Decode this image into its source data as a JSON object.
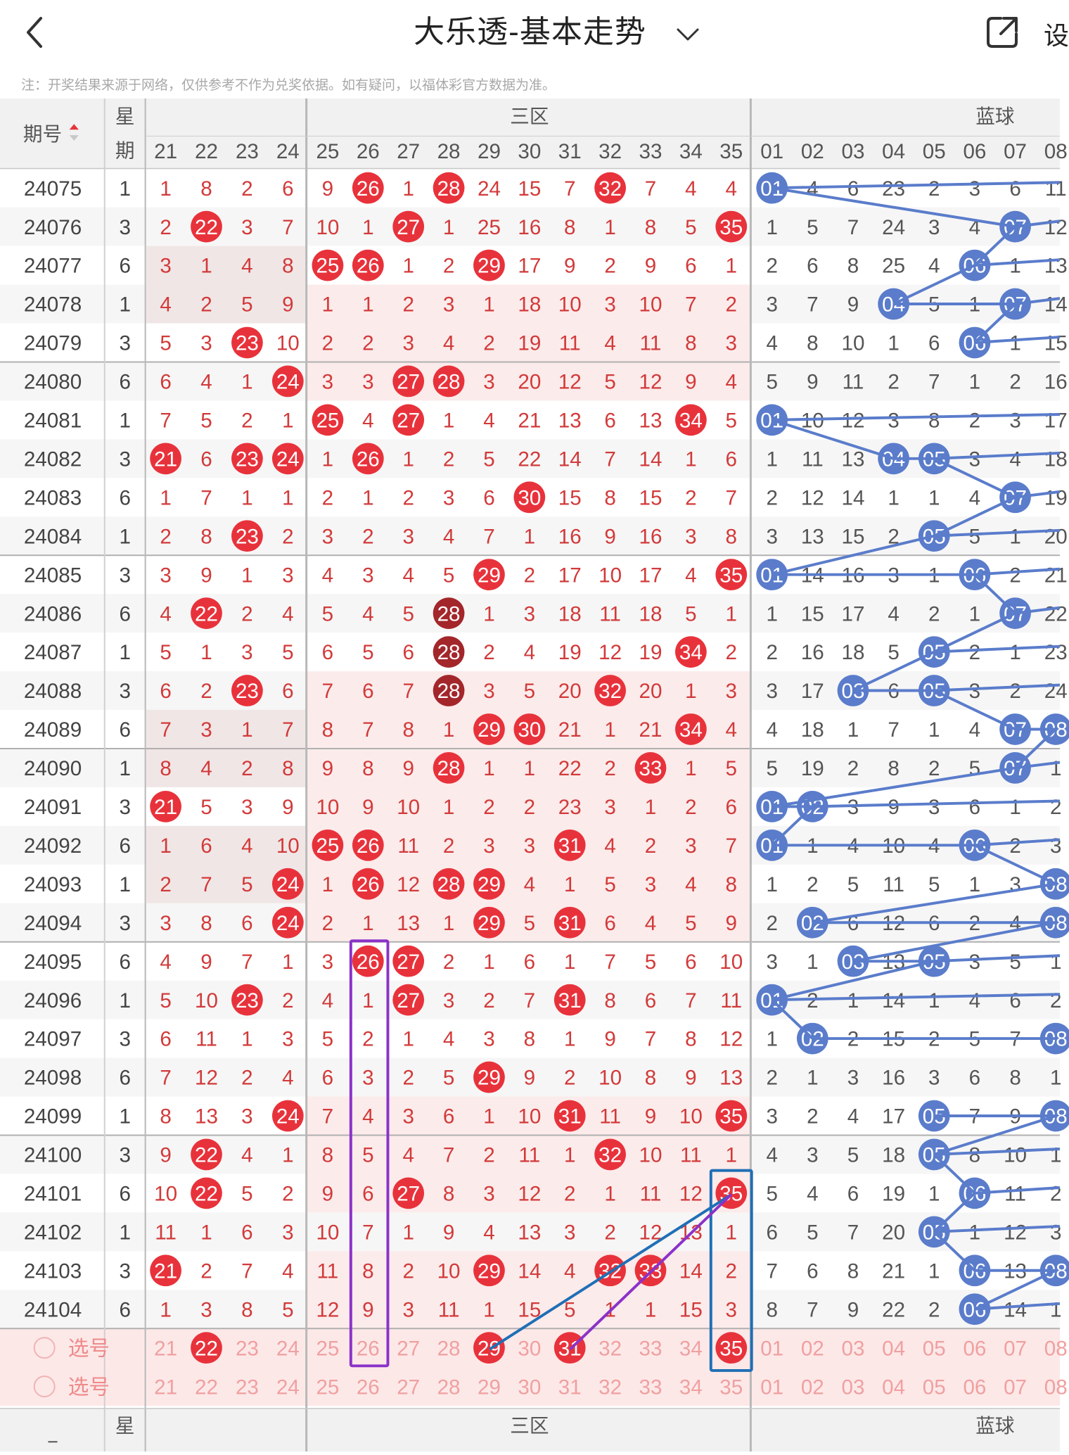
{
  "header": {
    "title": "大乐透-基本走势",
    "settings_label": "设"
  },
  "note": "注：开奖结果来源于网络，仅供参考不作为兑奖依据。如有疑问，以福体彩官方数据为准。",
  "table": {
    "issue_header": "期号",
    "weekday_header": "星期",
    "zone3_header": "三区",
    "blue_header": "蓝球",
    "front_cols": [
      "21",
      "22",
      "23",
      "24",
      "25",
      "26",
      "27",
      "28",
      "29",
      "30",
      "31",
      "32",
      "33",
      "34",
      "35"
    ],
    "blue_cols": [
      "01",
      "02",
      "03",
      "04",
      "05",
      "06",
      "07",
      "08"
    ],
    "select_label": "选号",
    "rows": [
      {
        "issue": "24075",
        "w": "1",
        "front": [
          "1",
          "8",
          "2",
          "6",
          "9",
          "26",
          "1",
          "28",
          "24",
          "15",
          "7",
          "32",
          "7",
          "4",
          "4"
        ],
        "blue": [
          "01",
          "4",
          "6",
          "23",
          "2",
          "3",
          "6",
          "11"
        ]
      },
      {
        "issue": "24076",
        "w": "3",
        "front": [
          "2",
          "22",
          "3",
          "7",
          "10",
          "1",
          "27",
          "1",
          "25",
          "16",
          "8",
          "1",
          "8",
          "5",
          "35"
        ],
        "blue": [
          "1",
          "5",
          "7",
          "24",
          "3",
          "4",
          "07",
          "12"
        ]
      },
      {
        "issue": "24077",
        "w": "6",
        "front": [
          "3",
          "1",
          "4",
          "8",
          "25",
          "26",
          "1",
          "2",
          "29",
          "17",
          "9",
          "2",
          "9",
          "6",
          "1"
        ],
        "blue": [
          "2",
          "6",
          "8",
          "25",
          "4",
          "06",
          "1",
          "13"
        ]
      },
      {
        "issue": "24078",
        "w": "1",
        "front": [
          "4",
          "2",
          "5",
          "9",
          "1",
          "1",
          "2",
          "3",
          "1",
          "18",
          "10",
          "3",
          "10",
          "7",
          "2"
        ],
        "blue": [
          "3",
          "7",
          "9",
          "04",
          "5",
          "1",
          "07",
          "14"
        ]
      },
      {
        "issue": "24079",
        "w": "3",
        "front": [
          "5",
          "3",
          "23",
          "10",
          "2",
          "2",
          "3",
          "4",
          "2",
          "19",
          "11",
          "4",
          "11",
          "8",
          "3"
        ],
        "blue": [
          "4",
          "8",
          "10",
          "1",
          "6",
          "06",
          "1",
          "15"
        ]
      },
      {
        "issue": "24080",
        "w": "6",
        "front": [
          "6",
          "4",
          "1",
          "24",
          "3",
          "3",
          "27",
          "28",
          "3",
          "20",
          "12",
          "5",
          "12",
          "9",
          "4"
        ],
        "blue": [
          "5",
          "9",
          "11",
          "2",
          "7",
          "1",
          "2",
          "16"
        ]
      },
      {
        "issue": "24081",
        "w": "1",
        "front": [
          "7",
          "5",
          "2",
          "1",
          "25",
          "4",
          "27",
          "1",
          "4",
          "21",
          "13",
          "6",
          "13",
          "34",
          "5"
        ],
        "blue": [
          "01",
          "10",
          "12",
          "3",
          "8",
          "2",
          "3",
          "17"
        ]
      },
      {
        "issue": "24082",
        "w": "3",
        "front": [
          "21",
          "6",
          "23",
          "24",
          "1",
          "26",
          "1",
          "2",
          "5",
          "22",
          "14",
          "7",
          "14",
          "1",
          "6"
        ],
        "blue": [
          "1",
          "11",
          "13",
          "04",
          "05",
          "3",
          "4",
          "18"
        ]
      },
      {
        "issue": "24083",
        "w": "6",
        "front": [
          "1",
          "7",
          "1",
          "1",
          "2",
          "1",
          "2",
          "3",
          "6",
          "30",
          "15",
          "8",
          "15",
          "2",
          "7"
        ],
        "blue": [
          "2",
          "12",
          "14",
          "1",
          "1",
          "4",
          "07",
          "19"
        ]
      },
      {
        "issue": "24084",
        "w": "1",
        "front": [
          "2",
          "8",
          "23",
          "2",
          "3",
          "2",
          "3",
          "4",
          "7",
          "1",
          "16",
          "9",
          "16",
          "3",
          "8"
        ],
        "blue": [
          "3",
          "13",
          "15",
          "2",
          "05",
          "5",
          "1",
          "20"
        ]
      },
      {
        "issue": "24085",
        "w": "3",
        "front": [
          "3",
          "9",
          "1",
          "3",
          "4",
          "3",
          "4",
          "5",
          "29",
          "2",
          "17",
          "10",
          "17",
          "4",
          "35"
        ],
        "blue": [
          "01",
          "14",
          "16",
          "3",
          "1",
          "06",
          "2",
          "21"
        ]
      },
      {
        "issue": "24086",
        "w": "6",
        "front": [
          "4",
          "22",
          "2",
          "4",
          "5",
          "4",
          "5",
          "28",
          "1",
          "3",
          "18",
          "11",
          "18",
          "5",
          "1"
        ],
        "blue": [
          "1",
          "15",
          "17",
          "4",
          "2",
          "1",
          "07",
          "22"
        ]
      },
      {
        "issue": "24087",
        "w": "1",
        "front": [
          "5",
          "1",
          "3",
          "5",
          "6",
          "5",
          "6",
          "28",
          "2",
          "4",
          "19",
          "12",
          "19",
          "34",
          "2"
        ],
        "blue": [
          "2",
          "16",
          "18",
          "5",
          "05",
          "2",
          "1",
          "23"
        ]
      },
      {
        "issue": "24088",
        "w": "3",
        "front": [
          "6",
          "2",
          "23",
          "6",
          "7",
          "6",
          "7",
          "28",
          "3",
          "5",
          "20",
          "32",
          "20",
          "1",
          "3"
        ],
        "blue": [
          "3",
          "17",
          "03",
          "6",
          "05",
          "3",
          "2",
          "24"
        ]
      },
      {
        "issue": "24089",
        "w": "6",
        "front": [
          "7",
          "3",
          "1",
          "7",
          "8",
          "7",
          "8",
          "1",
          "29",
          "30",
          "21",
          "1",
          "21",
          "34",
          "4"
        ],
        "blue": [
          "4",
          "18",
          "1",
          "7",
          "1",
          "4",
          "07",
          "08"
        ]
      },
      {
        "issue": "24090",
        "w": "1",
        "front": [
          "8",
          "4",
          "2",
          "8",
          "9",
          "8",
          "9",
          "28",
          "1",
          "1",
          "22",
          "2",
          "33",
          "1",
          "5"
        ],
        "blue": [
          "5",
          "19",
          "2",
          "8",
          "2",
          "5",
          "07",
          "1"
        ]
      },
      {
        "issue": "24091",
        "w": "3",
        "front": [
          "21",
          "5",
          "3",
          "9",
          "10",
          "9",
          "10",
          "1",
          "2",
          "2",
          "23",
          "3",
          "1",
          "2",
          "6"
        ],
        "blue": [
          "01",
          "02",
          "3",
          "9",
          "3",
          "6",
          "1",
          "2"
        ]
      },
      {
        "issue": "24092",
        "w": "6",
        "front": [
          "1",
          "6",
          "4",
          "10",
          "25",
          "26",
          "11",
          "2",
          "3",
          "3",
          "31",
          "4",
          "2",
          "3",
          "7"
        ],
        "blue": [
          "01",
          "1",
          "4",
          "10",
          "4",
          "06",
          "2",
          "3"
        ]
      },
      {
        "issue": "24093",
        "w": "1",
        "front": [
          "2",
          "7",
          "5",
          "24",
          "1",
          "26",
          "12",
          "28",
          "29",
          "4",
          "1",
          "5",
          "3",
          "4",
          "8"
        ],
        "blue": [
          "1",
          "2",
          "5",
          "11",
          "5",
          "1",
          "3",
          "08"
        ]
      },
      {
        "issue": "24094",
        "w": "3",
        "front": [
          "3",
          "8",
          "6",
          "24",
          "2",
          "1",
          "13",
          "1",
          "29",
          "5",
          "31",
          "6",
          "4",
          "5",
          "9"
        ],
        "blue": [
          "2",
          "02",
          "6",
          "12",
          "6",
          "2",
          "4",
          "08"
        ]
      },
      {
        "issue": "24095",
        "w": "6",
        "front": [
          "4",
          "9",
          "7",
          "1",
          "3",
          "26",
          "27",
          "2",
          "1",
          "6",
          "1",
          "7",
          "5",
          "6",
          "10"
        ],
        "blue": [
          "3",
          "1",
          "03",
          "13",
          "05",
          "3",
          "5",
          "1"
        ]
      },
      {
        "issue": "24096",
        "w": "1",
        "front": [
          "5",
          "10",
          "23",
          "2",
          "4",
          "1",
          "27",
          "3",
          "2",
          "7",
          "31",
          "8",
          "6",
          "7",
          "11"
        ],
        "blue": [
          "01",
          "2",
          "1",
          "14",
          "1",
          "4",
          "6",
          "2"
        ]
      },
      {
        "issue": "24097",
        "w": "3",
        "front": [
          "6",
          "11",
          "1",
          "3",
          "5",
          "2",
          "1",
          "4",
          "3",
          "8",
          "1",
          "9",
          "7",
          "8",
          "12"
        ],
        "blue": [
          "1",
          "02",
          "2",
          "15",
          "2",
          "5",
          "7",
          "08"
        ]
      },
      {
        "issue": "24098",
        "w": "6",
        "front": [
          "7",
          "12",
          "2",
          "4",
          "6",
          "3",
          "2",
          "5",
          "29",
          "9",
          "2",
          "10",
          "8",
          "9",
          "13"
        ],
        "blue": [
          "2",
          "1",
          "3",
          "16",
          "3",
          "6",
          "8",
          "1"
        ]
      },
      {
        "issue": "24099",
        "w": "1",
        "front": [
          "8",
          "13",
          "3",
          "24",
          "7",
          "4",
          "3",
          "6",
          "1",
          "10",
          "31",
          "11",
          "9",
          "10",
          "35"
        ],
        "blue": [
          "3",
          "2",
          "4",
          "17",
          "05",
          "7",
          "9",
          "08"
        ]
      },
      {
        "issue": "24100",
        "w": "3",
        "front": [
          "9",
          "22",
          "4",
          "1",
          "8",
          "5",
          "4",
          "7",
          "2",
          "11",
          "1",
          "32",
          "10",
          "11",
          "1"
        ],
        "blue": [
          "4",
          "3",
          "5",
          "18",
          "05",
          "8",
          "10",
          "1"
        ]
      },
      {
        "issue": "24101",
        "w": "6",
        "front": [
          "10",
          "22",
          "5",
          "2",
          "9",
          "6",
          "27",
          "8",
          "3",
          "12",
          "2",
          "1",
          "11",
          "12",
          "35"
        ],
        "blue": [
          "5",
          "4",
          "6",
          "19",
          "1",
          "06",
          "11",
          "2"
        ]
      },
      {
        "issue": "24102",
        "w": "1",
        "front": [
          "11",
          "1",
          "6",
          "3",
          "10",
          "7",
          "1",
          "9",
          "4",
          "13",
          "3",
          "2",
          "12",
          "13",
          "1"
        ],
        "blue": [
          "6",
          "5",
          "7",
          "20",
          "05",
          "1",
          "12",
          "3"
        ]
      },
      {
        "issue": "24103",
        "w": "3",
        "front": [
          "21",
          "2",
          "7",
          "4",
          "11",
          "8",
          "2",
          "10",
          "29",
          "14",
          "4",
          "32",
          "33",
          "14",
          "2"
        ],
        "blue": [
          "7",
          "6",
          "8",
          "21",
          "1",
          "06",
          "13",
          "08"
        ]
      },
      {
        "issue": "24104",
        "w": "6",
        "front": [
          "1",
          "3",
          "8",
          "5",
          "12",
          "9",
          "3",
          "11",
          "1",
          "15",
          "5",
          "1",
          "1",
          "15",
          "3"
        ],
        "blue": [
          "8",
          "7",
          "9",
          "22",
          "2",
          "06",
          "14",
          "1"
        ]
      }
    ]
  }
}
